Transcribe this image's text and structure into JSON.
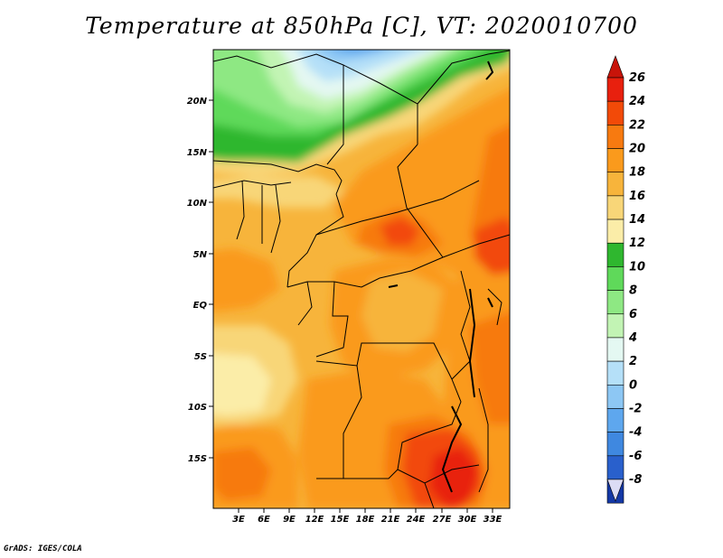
{
  "title": "Temperature at 850hPa [C], VT: 2020010700",
  "credit": "GrADS: IGES/COLA",
  "map": {
    "lat_labels": [
      "20N",
      "15N",
      "10N",
      "5N",
      "EQ",
      "5S",
      "10S",
      "15S"
    ],
    "lon_labels": [
      "3E",
      "6E",
      "9E",
      "12E",
      "15E",
      "18E",
      "21E",
      "24E",
      "27E",
      "30E",
      "33E"
    ]
  },
  "colorbar": {
    "ticks": [
      "26",
      "24",
      "22",
      "20",
      "18",
      "16",
      "14",
      "12",
      "10",
      "8",
      "6",
      "4",
      "2",
      "0",
      "-2",
      "-4",
      "-6",
      "-8"
    ],
    "colors": [
      "#e8200e",
      "#f24a08",
      "#f77a10",
      "#fa9a1c",
      "#f7b43b",
      "#f8d678",
      "#fbeda8",
      "#2fb72f",
      "#5fd95a",
      "#8ee883",
      "#c2f4b4",
      "#e4f8f2",
      "#b5e0f8",
      "#8dc7f4",
      "#5ea7ee",
      "#3f88e0",
      "#2960cc",
      "#1438a6",
      "#0a1f6d"
    ],
    "top_arrow_color": "#c8140a",
    "bottom_arrow_color": "#dcdcf5"
  }
}
